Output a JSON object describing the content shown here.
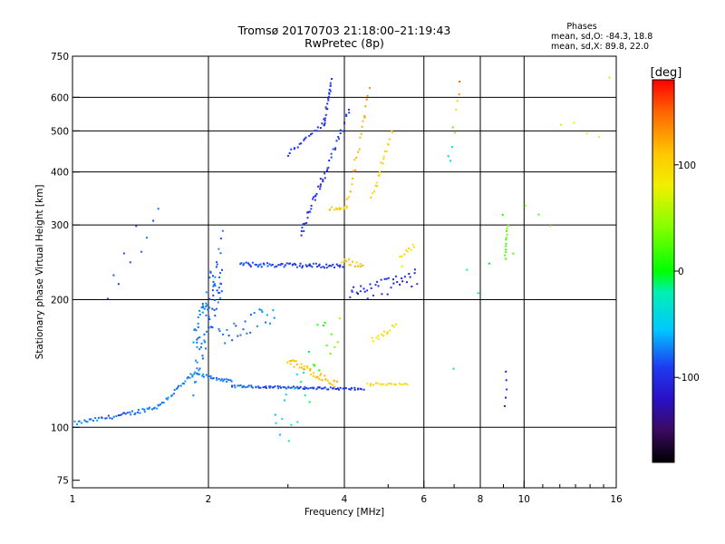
{
  "chart_data": {
    "type": "scatter",
    "title": "Tromsø 20170703 21:18:00–21:19:43",
    "subtitle": "RwPretec (8p)",
    "xlabel": "Frequency [MHz]",
    "ylabel": "Stationary phase Virtual Height [km]",
    "x_scale": "log",
    "y_scale": "log",
    "xlim": [
      1,
      16
    ],
    "ylim": [
      72,
      750
    ],
    "x_ticks": [
      1,
      2,
      4,
      6,
      8,
      10,
      16
    ],
    "x_tick_labels": [
      "1",
      "2",
      "4",
      "6",
      "8",
      "10",
      "16"
    ],
    "x_grid": [
      2,
      4,
      6,
      8,
      10
    ],
    "y_ticks": [
      75,
      100,
      200,
      300,
      400,
      500,
      600,
      750
    ],
    "y_tick_labels": [
      "75",
      "100",
      "200",
      "300",
      "400",
      "500",
      "600",
      "750"
    ],
    "y_grid": [
      100,
      200,
      300,
      400,
      500,
      600
    ],
    "grid": true,
    "phases_info": {
      "title": "Phases",
      "line_o": "mean, sd,O: -84.3, 18.8",
      "line_x": "mean, sd,X:  89.8, 22.0"
    },
    "colorbar": {
      "label": "[deg]",
      "range": [
        -180,
        180
      ],
      "ticks": [
        100,
        0,
        -100
      ],
      "tick_labels": [
        "100",
        "0",
        "-100"
      ]
    },
    "colormap_stops": [
      {
        "v": -180,
        "color": "#000000"
      },
      {
        "v": -150,
        "color": "#3a0a60"
      },
      {
        "v": -120,
        "color": "#2a10c8"
      },
      {
        "v": -90,
        "color": "#1d3cf0"
      },
      {
        "v": -55,
        "color": "#00c8ff"
      },
      {
        "v": -20,
        "color": "#00f0b4"
      },
      {
        "v": 0,
        "color": "#00ff00"
      },
      {
        "v": 40,
        "color": "#80ff00"
      },
      {
        "v": 80,
        "color": "#f0f000"
      },
      {
        "v": 110,
        "color": "#ffc800"
      },
      {
        "v": 150,
        "color": "#ff6400"
      },
      {
        "v": 180,
        "color": "#ff0000"
      }
    ],
    "series": [
      {
        "segments": [
          {
            "f1": 1.0,
            "f2": 1.3,
            "h1": 102,
            "h2": 107,
            "n": 28,
            "p": -70,
            "p2": -85,
            "jit": 0.01
          },
          {
            "f1": 1.3,
            "f2": 1.55,
            "h1": 107,
            "h2": 112,
            "n": 22,
            "p": -80,
            "p2": -75,
            "jit": 0.012
          },
          {
            "f1": 1.55,
            "f2": 1.85,
            "h1": 112,
            "h2": 133,
            "n": 24,
            "p": -75,
            "p2": -72,
            "jit": 0.012
          },
          {
            "f1": 1.85,
            "f2": 2.25,
            "h1": 134,
            "h2": 128,
            "n": 28,
            "p": -72,
            "p2": -78,
            "jit": 0.008
          },
          {
            "f1": 2.25,
            "f2": 4.4,
            "h1": 125,
            "h2": 123,
            "n": 90,
            "p": -80,
            "p2": -95,
            "jit": 0.006
          },
          {
            "f1": 1.85,
            "f2": 2.15,
            "h1": 140,
            "h2": 250,
            "n": 90,
            "p": -75,
            "p2": -80,
            "jit": 0.18
          },
          {
            "f1": 2.1,
            "f2": 2.8,
            "h1": 165,
            "h2": 185,
            "n": 26,
            "p": -80,
            "p2": -70,
            "jit": 0.06
          },
          {
            "f1": 2.35,
            "f2": 3.95,
            "h1": 242,
            "h2": 240,
            "n": 70,
            "p": -85,
            "p2": -95,
            "jit": 0.012
          },
          {
            "f1": 3.95,
            "f2": 4.4,
            "h1": 248,
            "h2": 240,
            "n": 14,
            "p": 110,
            "p2": 115,
            "jit": 0.015
          },
          {
            "f1": 3.0,
            "f2": 3.85,
            "h1": 144,
            "h2": 126,
            "n": 40,
            "p": 110,
            "p2": 115,
            "jit": 0.02
          },
          {
            "f1": 4.5,
            "f2": 5.5,
            "h1": 126,
            "h2": 127,
            "n": 20,
            "p": 95,
            "p2": 100,
            "jit": 0.008
          },
          {
            "f1": 3.0,
            "f2": 3.6,
            "h1": 440,
            "h2": 520,
            "n": 20,
            "p": -95,
            "p2": -100,
            "jit": 0.01
          },
          {
            "f1": 3.6,
            "f2": 3.75,
            "h1": 520,
            "h2": 660,
            "n": 22,
            "p": -100,
            "p2": -95,
            "jit": 0.02
          },
          {
            "f1": 3.2,
            "f2": 3.55,
            "h1": 285,
            "h2": 380,
            "n": 24,
            "p": -95,
            "p2": -100,
            "jit": 0.02
          },
          {
            "f1": 3.55,
            "f2": 4.1,
            "h1": 370,
            "h2": 560,
            "n": 26,
            "p": -95,
            "p2": -90,
            "jit": 0.02
          },
          {
            "f1": 3.7,
            "f2": 4.05,
            "h1": 328,
            "h2": 330,
            "n": 12,
            "p": 105,
            "p2": 110,
            "jit": 0.01
          },
          {
            "f1": 4.05,
            "f2": 4.55,
            "h1": 330,
            "h2": 620,
            "n": 22,
            "p": 115,
            "p2": 130,
            "jit": 0.02
          },
          {
            "f1": 4.6,
            "f2": 5.1,
            "h1": 350,
            "h2": 500,
            "n": 20,
            "p": 100,
            "p2": 105,
            "jit": 0.02
          },
          {
            "f1": 4.1,
            "f2": 5.8,
            "h1": 205,
            "h2": 225,
            "n": 40,
            "p": -100,
            "p2": -105,
            "jit": 0.05
          },
          {
            "f1": 4.6,
            "f2": 5.2,
            "h1": 160,
            "h2": 175,
            "n": 14,
            "p": 90,
            "p2": 95,
            "jit": 0.02
          },
          {
            "f1": 5.3,
            "f2": 5.7,
            "h1": 245,
            "h2": 265,
            "n": 10,
            "p": 90,
            "p2": 95,
            "jit": 0.04
          },
          {
            "f1": 9.1,
            "f2": 9.2,
            "h1": 250,
            "h2": 300,
            "n": 12,
            "p": 25,
            "p2": 30,
            "jit": 0.004
          },
          {
            "f1": 9.1,
            "f2": 9.15,
            "h1": 112,
            "h2": 135,
            "n": 5,
            "p": -110,
            "p2": -105,
            "jit": 0.004
          },
          {
            "f1": 6.8,
            "f2": 7.2,
            "h1": 420,
            "h2": 640,
            "n": 9,
            "p": -60,
            "p2": 150,
            "jit": 0.05
          },
          {
            "f1": 1.2,
            "f2": 1.55,
            "h1": 210,
            "h2": 330,
            "n": 10,
            "p": -90,
            "p2": -80,
            "jit": 0.1
          },
          {
            "f1": 2.8,
            "f2": 3.9,
            "h1": 95,
            "h2": 190,
            "n": 28,
            "p": -60,
            "p2": 40,
            "jit": 0.2
          },
          {
            "f1": 7.0,
            "f2": 15.5,
            "h1": 170,
            "h2": 620,
            "n": 14,
            "p": -40,
            "p2": 100,
            "jit": 0.25
          }
        ]
      }
    ]
  }
}
